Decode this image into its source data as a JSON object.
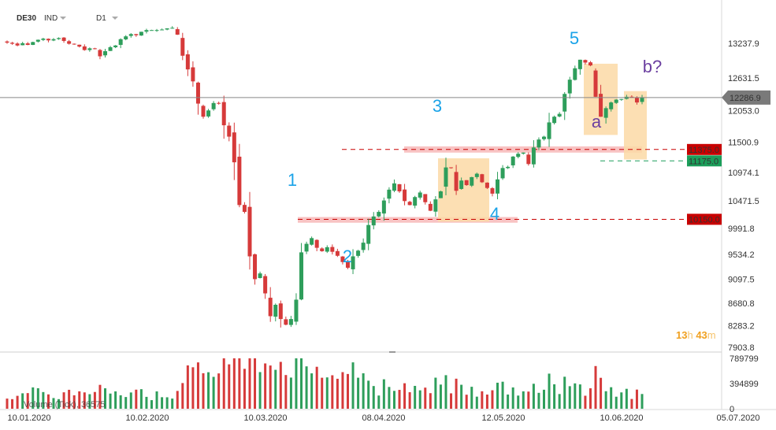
{
  "header": {
    "symbol": "DE30",
    "type": "IND",
    "interval": "D1"
  },
  "colors": {
    "up": "#2e9e5b",
    "down": "#d63a3a",
    "zone_pink": "#f7b9b9",
    "zone_orange": "#fbd9a6",
    "wave_blue": "#1aa3e8",
    "wave_purple": "#6b3fa0",
    "price_line": "#888888"
  },
  "timer": {
    "hours": "13",
    "h_unit": "h",
    "minutes": "43",
    "m_unit": "m"
  },
  "volume_label": "Volume (Tick), 36575",
  "chart_data": {
    "type": "candlestick",
    "y_axis_ticks": [
      "13237.9",
      "12631.5",
      "12053.0",
      "11500.9",
      "10974.1",
      "10471.5",
      "9991.8",
      "9534.2",
      "9097.5",
      "8680.8",
      "8283.2",
      "7903.8"
    ],
    "ylim": [
      7903.8,
      13237.9
    ],
    "volume_axis_ticks": [
      "789799",
      "394899",
      "0"
    ],
    "x_axis_ticks": [
      "10.01.2020",
      "10.02.2020",
      "10.03.2020",
      "08.04.2020",
      "12.05.2020",
      "10.06.2020",
      "05.07.2020"
    ],
    "current_price": {
      "label": "12286.9",
      "value": 12286.9
    },
    "levels": [
      {
        "label": "11375.0",
        "value": 11375.0,
        "color": "#c90000"
      },
      {
        "label": "11175.0",
        "value": 11175.0,
        "color": "#1b9e5a"
      },
      {
        "label": "10150.0",
        "value": 10150.0,
        "color": "#c90000"
      }
    ],
    "wave_labels": [
      {
        "text": "1",
        "color": "blue"
      },
      {
        "text": "2",
        "color": "blue"
      },
      {
        "text": "3",
        "color": "blue"
      },
      {
        "text": "4",
        "color": "blue"
      },
      {
        "text": "5",
        "color": "blue"
      },
      {
        "text": "a",
        "color": "purple"
      },
      {
        "text": "b?",
        "color": "purple"
      }
    ],
    "candles_close": [
      13250,
      13230,
      13200,
      13240,
      13210,
      13260,
      13300,
      13320,
      13290,
      13310,
      13330,
      13280,
      13230,
      13220,
      13180,
      13120,
      13150,
      13140,
      13010,
      13100,
      13170,
      13200,
      13310,
      13360,
      13400,
      13380,
      13440,
      13470,
      13470,
      13470,
      13480,
      13500,
      13510,
      13390,
      13020,
      12780,
      12570,
      12180,
      11950,
      12060,
      12190,
      12180,
      11800,
      11600,
      11150,
      10400,
      10280,
      9500,
      9100,
      9200,
      8850,
      8450,
      8650,
      8400,
      8300,
      8400,
      8740,
      9570,
      9720,
      9820,
      9650,
      9590,
      9660,
      9580,
      9510,
      9400,
      9300,
      9500,
      9600,
      9740,
      10050,
      10200,
      10280,
      10480,
      10670,
      10780,
      10640,
      10470,
      10400,
      10540,
      10620,
      10450,
      10300,
      10500,
      10640,
      11060,
      11050,
      10650,
      10830,
      10750,
      10890,
      10950,
      10800,
      10700,
      10600,
      10850,
      11050,
      11070,
      11250,
      11300,
      11320,
      11120,
      11410,
      11550,
      11600,
      11850,
      11950,
      12000,
      12350,
      12600,
      12800,
      12950,
      12900,
      12850,
      12300,
      11950,
      12100,
      12200,
      12250,
      12260,
      12300,
      12290,
      12200,
      12287
    ],
    "volume_note": "one volume bar per candle, values estimated in 0–789799 range"
  }
}
